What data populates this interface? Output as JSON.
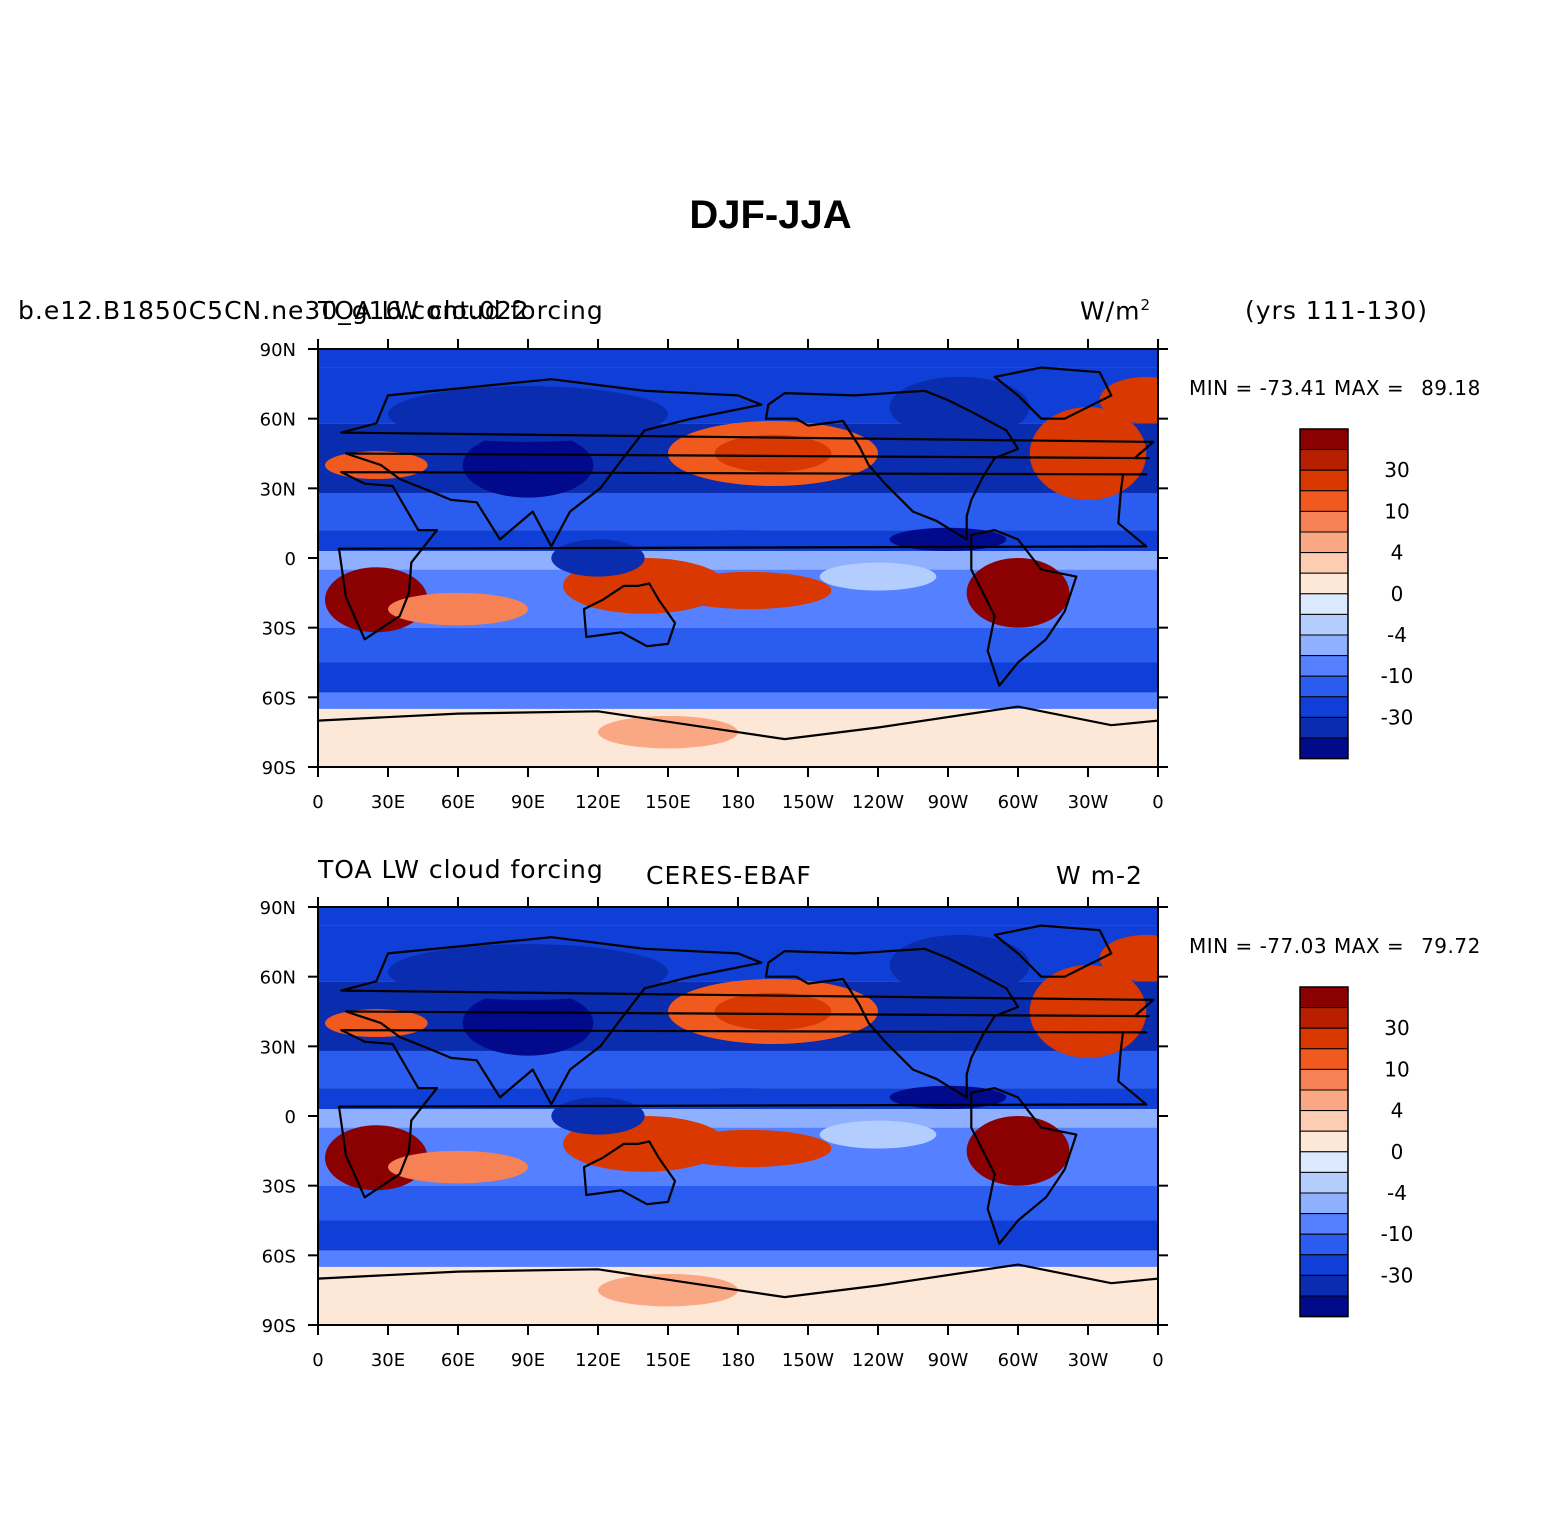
{
  "title": "DJF-JJA",
  "axes": {
    "lat_ticks": [
      "90N",
      "60N",
      "30N",
      "0",
      "30S",
      "60S",
      "90S"
    ],
    "lon_ticks": [
      "0",
      "30E",
      "60E",
      "90E",
      "120E",
      "150E",
      "180",
      "150W",
      "120W",
      "90W",
      "60W",
      "30W",
      "0"
    ]
  },
  "colorbar": {
    "tick_labels": [
      "30",
      "10",
      "4",
      "0",
      "-4",
      "-10",
      "-30"
    ],
    "colors": [
      "#8b0000",
      "#b81f00",
      "#d93800",
      "#f05a1e",
      "#f58154",
      "#faa883",
      "#fccdb3",
      "#fde8d8",
      "#dbe9ff",
      "#b3cdff",
      "#8fb0ff",
      "#5580ff",
      "#2a5cf0",
      "#0f3fd6",
      "#0a2cae",
      "#000a8a"
    ]
  },
  "panels": [
    {
      "name": "model",
      "left_label": "b.e12.B1850C5CN.ne30_g16.cont.022",
      "center_label": "TOA LW cloud forcing",
      "right_label": "W/m",
      "right_label_sup": "2",
      "period": "(yrs 111-130)",
      "min_label": "MIN =",
      "min_value": "-73.41",
      "max_label": "MAX =",
      "max_value": "89.18"
    },
    {
      "name": "observation",
      "left_label": "TOA LW cloud forcing",
      "center_label": "CERES-EBAF",
      "right_label": "W m-2",
      "min_label": "MIN =",
      "min_value": "-77.03",
      "max_label": "MAX =",
      "max_value": "79.72"
    }
  ]
}
